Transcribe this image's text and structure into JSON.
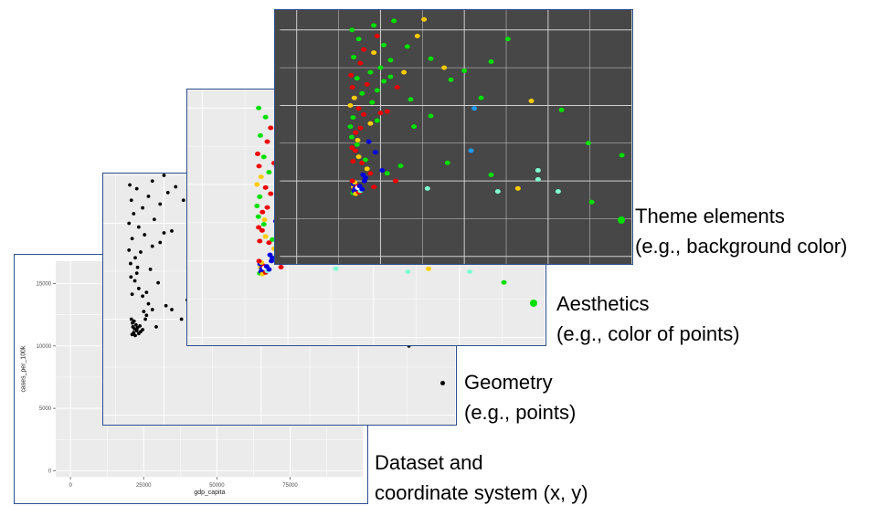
{
  "layers": {
    "theme": {
      "line1": "Theme elements",
      "line2": "(e.g., background color)",
      "background": "#474747",
      "grid_color": "#d0d0d0"
    },
    "aesthetics": {
      "line1": "Aesthetics",
      "line2": "(e.g., color of points)",
      "background": "#ebebeb"
    },
    "geometry": {
      "line1": "Geometry",
      "line2": "(e.g., points)",
      "background": "#ebebeb",
      "point_color": "#000000"
    },
    "dataset": {
      "line1": "Dataset and",
      "line2": "coordinate system (x, y)",
      "background": "#ffffff"
    }
  },
  "point_palette": {
    "green": "#00e000",
    "red": "#ee0000",
    "yellow": "#ffcc00",
    "blue": "#0000dd",
    "lightblue": "#1e9bff",
    "aqua": "#7fffd4",
    "white": "#ffffff",
    "black": "#000000"
  },
  "chart_data": {
    "type": "scatter",
    "xlabel": "gdp_capita",
    "ylabel": "cases_per_100k",
    "xlim": [
      -5000,
      100000
    ],
    "ylim": [
      -500,
      16800
    ],
    "x_ticks": [
      0,
      25000,
      50000,
      75000
    ],
    "x_tick_labels": [
      "0",
      "25000",
      "50000",
      "75000"
    ],
    "y_ticks": [
      0,
      5000,
      10000,
      15000
    ],
    "y_tick_labels": [
      "0",
      "5000",
      "10000",
      "15000"
    ],
    "grid": true,
    "points": [
      {
        "x": 16800,
        "y": 4200,
        "c": "green"
      },
      {
        "x": 17200,
        "y": 4300,
        "c": "blue"
      },
      {
        "x": 17600,
        "y": 4150,
        "c": "yellow"
      },
      {
        "x": 18000,
        "y": 4400,
        "c": "blue"
      },
      {
        "x": 18500,
        "y": 4250,
        "c": "red"
      },
      {
        "x": 19000,
        "y": 4350,
        "c": "aqua"
      },
      {
        "x": 17000,
        "y": 4600,
        "c": "yellow"
      },
      {
        "x": 17400,
        "y": 4500,
        "c": "blue"
      },
      {
        "x": 17800,
        "y": 4700,
        "c": "red"
      },
      {
        "x": 18200,
        "y": 4550,
        "c": "white"
      },
      {
        "x": 16900,
        "y": 4800,
        "c": "blue"
      },
      {
        "x": 17300,
        "y": 4900,
        "c": "yellow"
      },
      {
        "x": 18800,
        "y": 4650,
        "c": "blue"
      },
      {
        "x": 19500,
        "y": 4450,
        "c": "blue"
      },
      {
        "x": 16600,
        "y": 5000,
        "c": "red"
      },
      {
        "x": 20500,
        "y": 5200,
        "c": "blue"
      },
      {
        "x": 22000,
        "y": 5500,
        "c": "red"
      },
      {
        "x": 21000,
        "y": 5800,
        "c": "yellow"
      },
      {
        "x": 19500,
        "y": 6200,
        "c": "red"
      },
      {
        "x": 20500,
        "y": 6400,
        "c": "green"
      },
      {
        "x": 18500,
        "y": 6600,
        "c": "yellow"
      },
      {
        "x": 16800,
        "y": 6300,
        "c": "red"
      },
      {
        "x": 17500,
        "y": 7000,
        "c": "red"
      },
      {
        "x": 18000,
        "y": 7400,
        "c": "green"
      },
      {
        "x": 16500,
        "y": 7200,
        "c": "red"
      },
      {
        "x": 18200,
        "y": 7700,
        "c": "yellow"
      },
      {
        "x": 16400,
        "y": 7900,
        "c": "green"
      },
      {
        "x": 17600,
        "y": 8200,
        "c": "red"
      },
      {
        "x": 19000,
        "y": 8500,
        "c": "red"
      },
      {
        "x": 16000,
        "y": 8600,
        "c": "green"
      },
      {
        "x": 22000,
        "y": 8800,
        "c": "yellow"
      },
      {
        "x": 24000,
        "y": 9000,
        "c": "green"
      },
      {
        "x": 16800,
        "y": 9200,
        "c": "green"
      },
      {
        "x": 20000,
        "y": 9400,
        "c": "red"
      },
      {
        "x": 25000,
        "y": 9500,
        "c": "red"
      },
      {
        "x": 18500,
        "y": 9800,
        "c": "red"
      },
      {
        "x": 16000,
        "y": 10000,
        "c": "yellow"
      },
      {
        "x": 22500,
        "y": 10200,
        "c": "green"
      },
      {
        "x": 17200,
        "y": 10500,
        "c": "yellow"
      },
      {
        "x": 19500,
        "y": 10800,
        "c": "green"
      },
      {
        "x": 24000,
        "y": 11000,
        "c": "green"
      },
      {
        "x": 16600,
        "y": 11200,
        "c": "red"
      },
      {
        "x": 21000,
        "y": 11400,
        "c": "red"
      },
      {
        "x": 26000,
        "y": 11600,
        "c": "green"
      },
      {
        "x": 18000,
        "y": 11800,
        "c": "green"
      },
      {
        "x": 16200,
        "y": 12000,
        "c": "red"
      },
      {
        "x": 22000,
        "y": 12200,
        "c": "green"
      },
      {
        "x": 25000,
        "y": 12500,
        "c": "green"
      },
      {
        "x": 19000,
        "y": 12800,
        "c": "red"
      },
      {
        "x": 28000,
        "y": 13000,
        "c": "green"
      },
      {
        "x": 17000,
        "y": 13200,
        "c": "green"
      },
      {
        "x": 23000,
        "y": 13500,
        "c": "yellow"
      },
      {
        "x": 20000,
        "y": 13700,
        "c": "red"
      },
      {
        "x": 26000,
        "y": 14000,
        "c": "green"
      },
      {
        "x": 18500,
        "y": 14400,
        "c": "green"
      },
      {
        "x": 24000,
        "y": 14600,
        "c": "red"
      },
      {
        "x": 16500,
        "y": 15000,
        "c": "green"
      },
      {
        "x": 29000,
        "y": 15600,
        "c": "green"
      },
      {
        "x": 38000,
        "y": 15700,
        "c": "yellow"
      },
      {
        "x": 23000,
        "y": 15300,
        "c": "green"
      },
      {
        "x": 36000,
        "y": 14600,
        "c": "yellow"
      },
      {
        "x": 33000,
        "y": 13900,
        "c": "green"
      },
      {
        "x": 40000,
        "y": 13100,
        "c": "green"
      },
      {
        "x": 44000,
        "y": 12500,
        "c": "yellow"
      },
      {
        "x": 32000,
        "y": 12200,
        "c": "yellow"
      },
      {
        "x": 50000,
        "y": 12300,
        "c": "green"
      },
      {
        "x": 46000,
        "y": 11700,
        "c": "green"
      },
      {
        "x": 53000,
        "y": 9800,
        "c": "lightblue"
      },
      {
        "x": 55000,
        "y": 10500,
        "c": "green"
      },
      {
        "x": 58000,
        "y": 12900,
        "c": "green"
      },
      {
        "x": 63000,
        "y": 14400,
        "c": "green"
      },
      {
        "x": 70000,
        "y": 10300,
        "c": "yellow"
      },
      {
        "x": 79000,
        "y": 9700,
        "c": "green"
      },
      {
        "x": 87000,
        "y": 7500,
        "c": "green"
      },
      {
        "x": 97000,
        "y": 6700,
        "c": "green"
      },
      {
        "x": 45000,
        "y": 6200,
        "c": "green"
      },
      {
        "x": 52000,
        "y": 7000,
        "c": "lightblue"
      },
      {
        "x": 58000,
        "y": 5400,
        "c": "green"
      },
      {
        "x": 72000,
        "y": 5100,
        "c": "aqua"
      },
      {
        "x": 72000,
        "y": 5700,
        "c": "aqua"
      },
      {
        "x": 39000,
        "y": 4500,
        "c": "aqua"
      },
      {
        "x": 60000,
        "y": 4300,
        "c": "aqua"
      },
      {
        "x": 78000,
        "y": 4300,
        "c": "aqua"
      },
      {
        "x": 88000,
        "y": 3600,
        "c": "green"
      },
      {
        "x": 66000,
        "y": 4500,
        "c": "yellow"
      },
      {
        "x": 23000,
        "y": 4600,
        "c": "red"
      },
      {
        "x": 27000,
        "y": 5500,
        "c": "green"
      },
      {
        "x": 31000,
        "y": 6000,
        "c": "green"
      },
      {
        "x": 29500,
        "y": 5000,
        "c": "red"
      },
      {
        "x": 21500,
        "y": 7600,
        "c": "blue"
      },
      {
        "x": 20200,
        "y": 5000,
        "c": "blue"
      },
      {
        "x": 25500,
        "y": 5700,
        "c": "blue"
      },
      {
        "x": 19800,
        "y": 5400,
        "c": "blue"
      },
      {
        "x": 23500,
        "y": 6900,
        "c": "blue"
      },
      {
        "x": 35000,
        "y": 8600,
        "c": "green"
      },
      {
        "x": 27000,
        "y": 9600,
        "c": "red"
      },
      {
        "x": 34000,
        "y": 10400,
        "c": "green"
      },
      {
        "x": 30000,
        "y": 11200,
        "c": "red"
      },
      {
        "x": 28000,
        "y": 11900,
        "c": "green"
      },
      {
        "x": 40000,
        "y": 9300,
        "c": "green"
      }
    ]
  }
}
